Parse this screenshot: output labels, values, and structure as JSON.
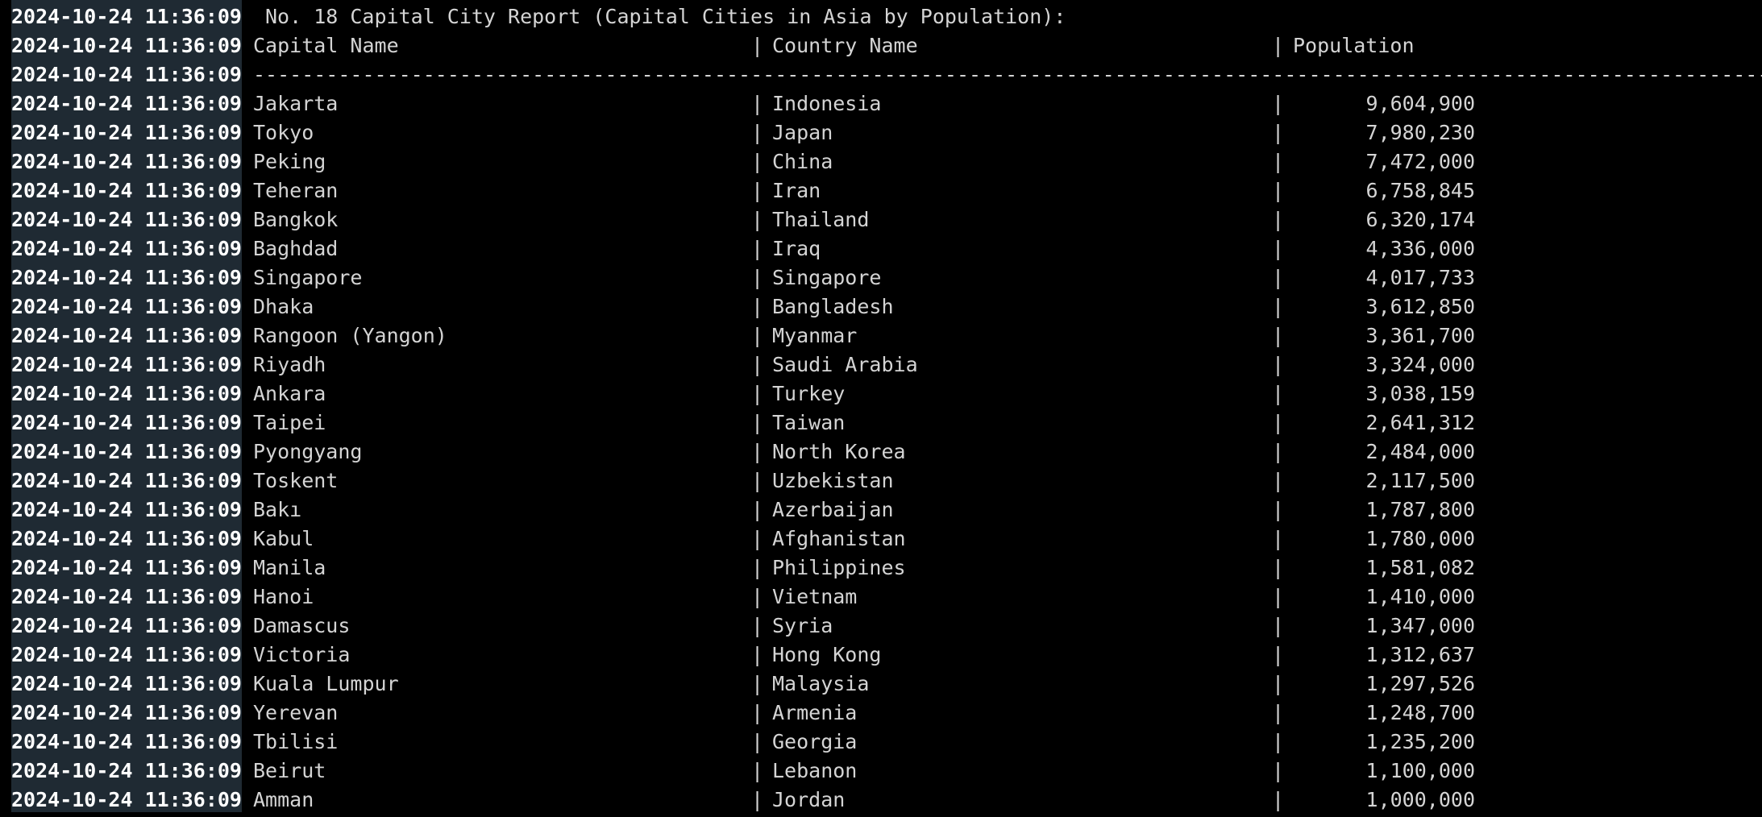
{
  "timestamp": "2024-10-24 11:36:09",
  "title": "No. 18 Capital City Report (Capital Cities in Asia by Population):",
  "headers": {
    "capital": "Capital Name",
    "country": "Country Name",
    "population": "Population"
  },
  "separator": "|",
  "rule": "----------------------------------------------------------------------------------------------------------------------------------------------------------------------------------------------------------",
  "rows": [
    {
      "capital": "Jakarta",
      "country": "Indonesia",
      "population": "9,604,900"
    },
    {
      "capital": "Tokyo",
      "country": "Japan",
      "population": "7,980,230"
    },
    {
      "capital": "Peking",
      "country": "China",
      "population": "7,472,000"
    },
    {
      "capital": "Teheran",
      "country": "Iran",
      "population": "6,758,845"
    },
    {
      "capital": "Bangkok",
      "country": "Thailand",
      "population": "6,320,174"
    },
    {
      "capital": "Baghdad",
      "country": "Iraq",
      "population": "4,336,000"
    },
    {
      "capital": "Singapore",
      "country": "Singapore",
      "population": "4,017,733"
    },
    {
      "capital": "Dhaka",
      "country": "Bangladesh",
      "population": "3,612,850"
    },
    {
      "capital": "Rangoon (Yangon)",
      "country": "Myanmar",
      "population": "3,361,700"
    },
    {
      "capital": "Riyadh",
      "country": "Saudi Arabia",
      "population": "3,324,000"
    },
    {
      "capital": "Ankara",
      "country": "Turkey",
      "population": "3,038,159"
    },
    {
      "capital": "Taipei",
      "country": "Taiwan",
      "population": "2,641,312"
    },
    {
      "capital": "Pyongyang",
      "country": "North Korea",
      "population": "2,484,000"
    },
    {
      "capital": "Toskent",
      "country": "Uzbekistan",
      "population": "2,117,500"
    },
    {
      "capital": "Bakı",
      "country": "Azerbaijan",
      "population": "1,787,800"
    },
    {
      "capital": "Kabul",
      "country": "Afghanistan",
      "population": "1,780,000"
    },
    {
      "capital": "Manila",
      "country": "Philippines",
      "population": "1,581,082"
    },
    {
      "capital": "Hanoi",
      "country": "Vietnam",
      "population": "1,410,000"
    },
    {
      "capital": "Damascus",
      "country": "Syria",
      "population": "1,347,000"
    },
    {
      "capital": "Victoria",
      "country": "Hong Kong",
      "population": "1,312,637"
    },
    {
      "capital": "Kuala Lumpur",
      "country": "Malaysia",
      "population": "1,297,526"
    },
    {
      "capital": "Yerevan",
      "country": "Armenia",
      "population": "1,248,700"
    },
    {
      "capital": "Tbilisi",
      "country": "Georgia",
      "population": "1,235,200"
    },
    {
      "capital": "Beirut",
      "country": "Lebanon",
      "population": "1,100,000"
    },
    {
      "capital": "Amman",
      "country": "Jordan",
      "population": "1,000,000"
    }
  ]
}
